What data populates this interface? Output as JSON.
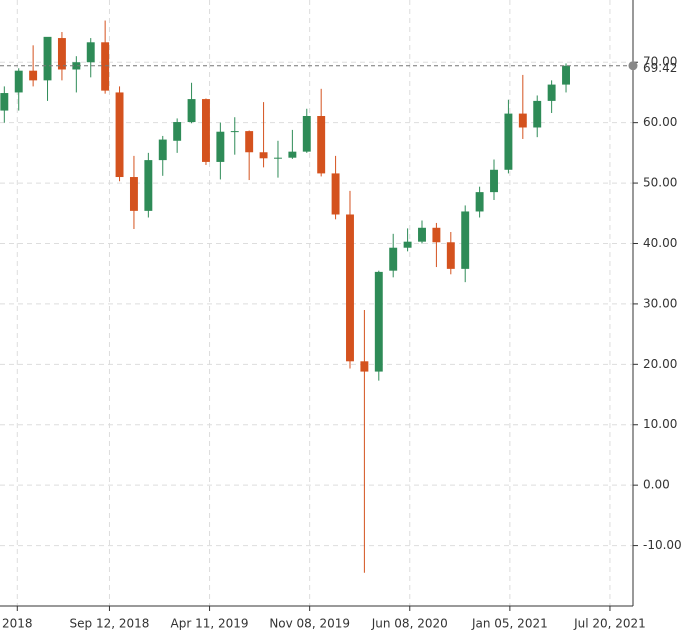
{
  "chart_data": {
    "type": "candlestick",
    "open": [
      62,
      65,
      68.6,
      67,
      74,
      68.8,
      70,
      73.3,
      65,
      51,
      45.4,
      53.8,
      57,
      60.1,
      63.9,
      53.5,
      58.5,
      58.6,
      55.1,
      54.1,
      54.2,
      55.2,
      61.1,
      51.6,
      44.8,
      20.5,
      18.8,
      35.5,
      39.3,
      40.3,
      42.6,
      40.2,
      35.8,
      45.3,
      48.5,
      52.2,
      61.5,
      59.2,
      63.6,
      66.3
    ],
    "high": [
      66,
      69,
      72.8,
      74,
      75,
      71,
      74,
      76.9,
      66,
      54.5,
      55,
      57.8,
      60.7,
      66.6,
      64,
      60,
      60.9,
      58.7,
      63.4,
      57,
      58.8,
      62.3,
      65.6,
      54.5,
      48.7,
      29,
      35.5,
      41.6,
      42.5,
      43.8,
      43.4,
      41.9,
      46.3,
      49.4,
      53.9,
      63.8,
      67.9,
      64.5,
      67,
      69.8
    ],
    "low": [
      60,
      62,
      66,
      63.6,
      67,
      65,
      67.5,
      64.8,
      50.3,
      42.4,
      44.3,
      51.2,
      55,
      59.9,
      53,
      50.6,
      54.7,
      50.5,
      52.6,
      50.9,
      54,
      55,
      51.1,
      44,
      19.3,
      -14.5,
      17.3,
      34.4,
      38.7,
      40,
      36.1,
      34.9,
      33.6,
      44.3,
      47.2,
      51.6,
      57.3,
      57.6,
      61.6,
      65
    ],
    "close": [
      64.9,
      68.6,
      67,
      74.2,
      68.8,
      70,
      73.3,
      65.3,
      51,
      45.4,
      53.8,
      57.2,
      60.1,
      63.9,
      53.5,
      58.5,
      58.6,
      55.1,
      54.1,
      54.2,
      55.2,
      61.1,
      51.6,
      44.8,
      20.5,
      18.8,
      35.3,
      39.3,
      40.3,
      42.6,
      40.2,
      35.8,
      45.3,
      48.5,
      52.2,
      61.5,
      59.2,
      63.6,
      66.3,
      69.42
    ],
    "up_color": "#2e8b57",
    "down_color": "#d4521e",
    "xlim": [
      -0.3,
      43.65
    ],
    "xticks": [
      {
        "value": 0.9,
        "label": "2018"
      },
      {
        "value": 7.3,
        "label": "Sep 12, 2018"
      },
      {
        "value": 14.25,
        "label": "Apr 11, 2019"
      },
      {
        "value": 21.2,
        "label": "Nov 08, 2019"
      },
      {
        "value": 28.15,
        "label": "Jun 08, 2020"
      },
      {
        "value": 35.1,
        "label": "Jan 05, 2021"
      },
      {
        "value": 42.05,
        "label": "Jul 20, 2021"
      }
    ],
    "ylim": [
      -20,
      80.3
    ],
    "yticks": [
      {
        "value": -10,
        "label": "-10.00"
      },
      {
        "value": 0,
        "label": "0.00"
      },
      {
        "value": 10,
        "label": "10.00"
      },
      {
        "value": 20,
        "label": "20.00"
      },
      {
        "value": 30,
        "label": "30.00"
      },
      {
        "value": 40,
        "label": "40.00"
      },
      {
        "value": 50,
        "label": "50.00"
      },
      {
        "value": 60,
        "label": "60.00"
      },
      {
        "value": 70,
        "label": "70.00"
      }
    ],
    "last_price": {
      "value": 69.42,
      "label": "69.42"
    },
    "grid": true
  }
}
